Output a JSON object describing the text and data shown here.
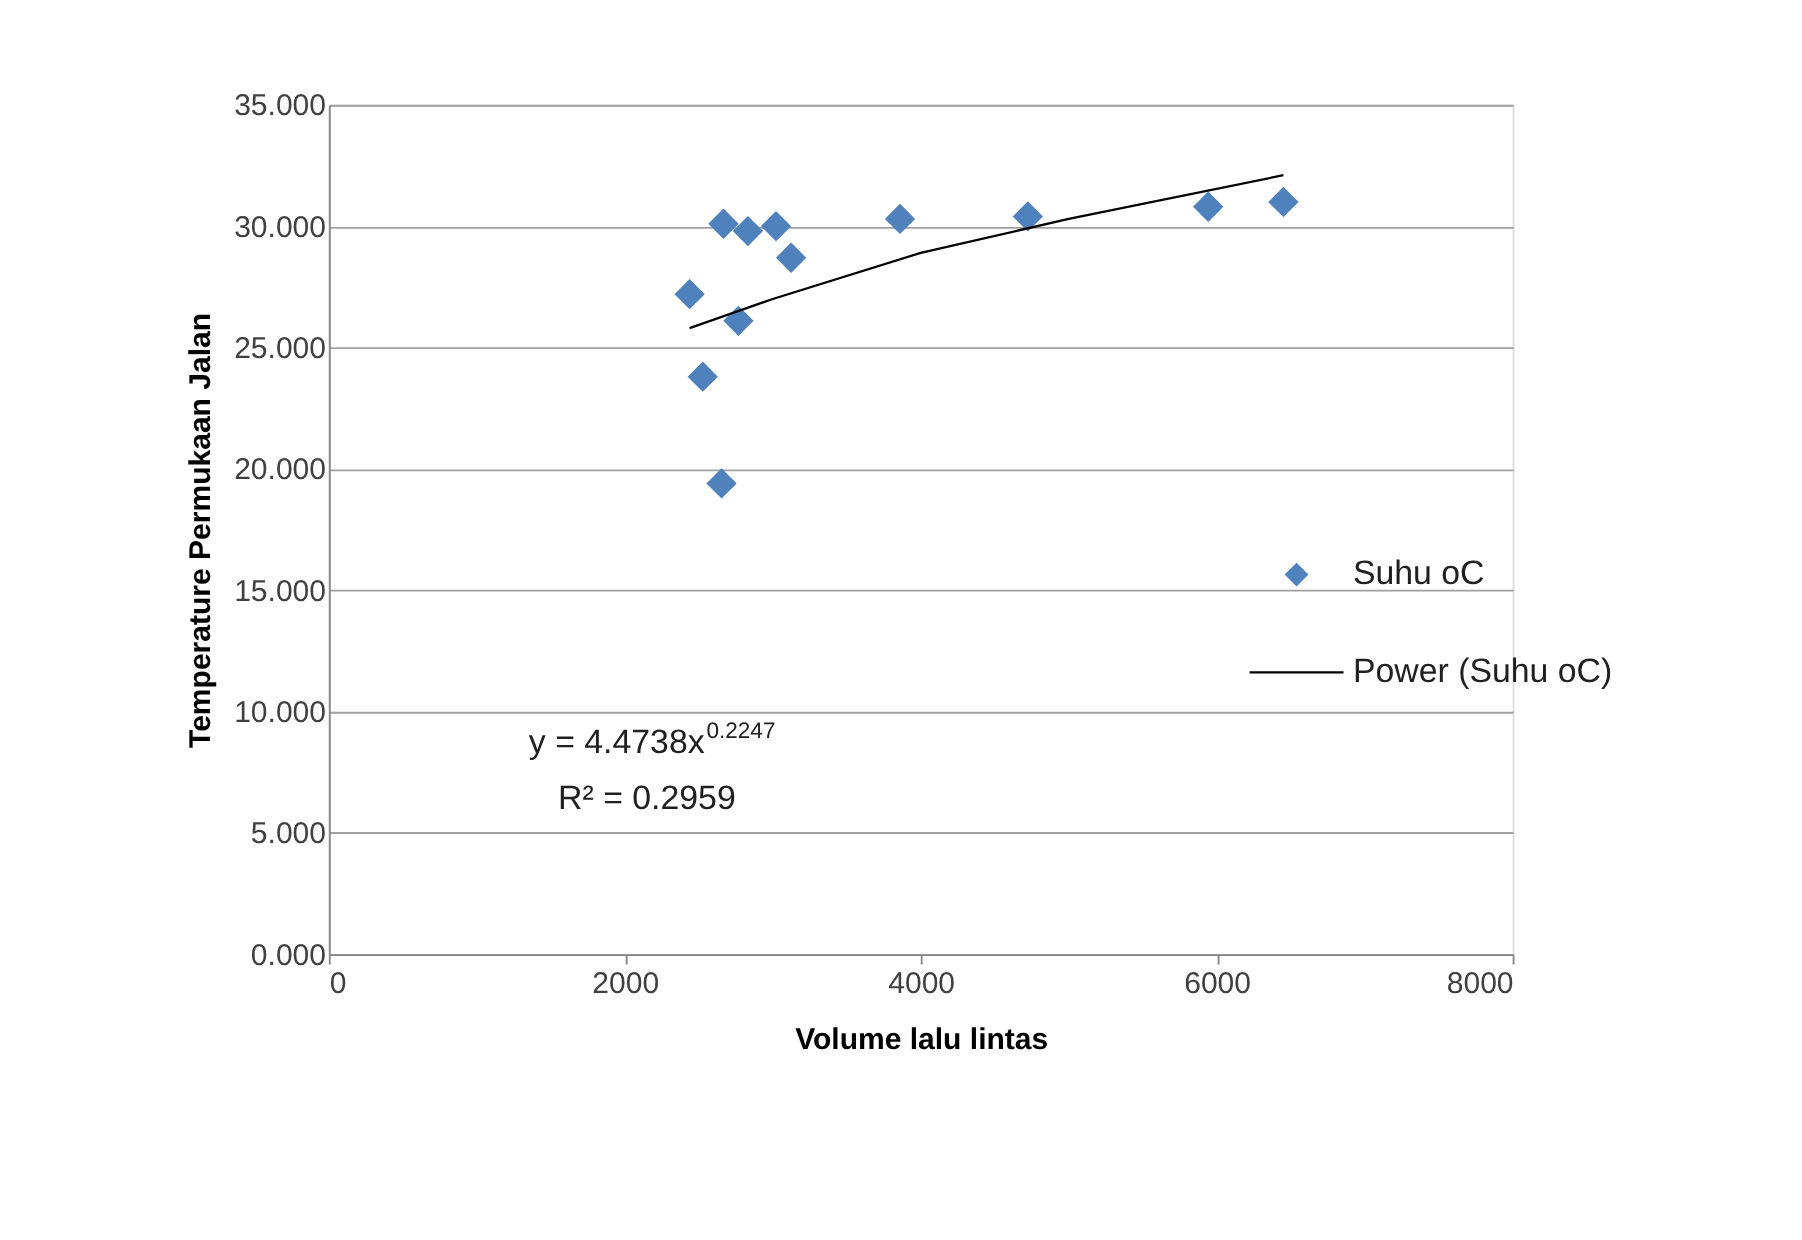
{
  "chart_data": {
    "type": "scatter",
    "xlabel": "Volume lalu lintas",
    "ylabel": "Temperature Permukaan  Jalan",
    "series": [
      {
        "name": "Suhu oC",
        "color": "#4f81bd",
        "marker": "diamond",
        "x": [
          2438,
          2527,
          2654,
          2667,
          2768,
          2832,
          3022,
          3124,
          3860,
          4724,
          5943,
          6451
        ],
        "values": [
          27.2,
          23.8,
          19.4,
          30.1,
          26.1,
          29.8,
          30.0,
          28.7,
          30.3,
          30.4,
          30.8,
          31.0
        ]
      },
      {
        "name": "Power (Suhu oC)",
        "type": "line",
        "color": "#000000",
        "x": [
          2438,
          3000,
          4000,
          5000,
          6451
        ],
        "values": [
          25.8,
          27.0,
          28.9,
          30.3,
          32.1
        ]
      }
    ],
    "xlim": [
      0,
      8000
    ],
    "xticks": [
      0,
      2000,
      4000,
      6000,
      8000
    ],
    "ylim": [
      0,
      35
    ],
    "yticks": [
      {
        "value": 0,
        "label": "0.000"
      },
      {
        "value": 5,
        "label": "5.000"
      },
      {
        "value": 10,
        "label": "10.000"
      },
      {
        "value": 15,
        "label": "15.000"
      },
      {
        "value": 20,
        "label": "20.000"
      },
      {
        "value": 25,
        "label": "25.000"
      },
      {
        "value": 30,
        "label": "30.000"
      },
      {
        "value": 35,
        "label": "35.000"
      }
    ],
    "grid": "y",
    "legend": "right",
    "annotations": [
      "y = 4.4738x$^{0.2247}$",
      "R² = 0.2959"
    ]
  }
}
